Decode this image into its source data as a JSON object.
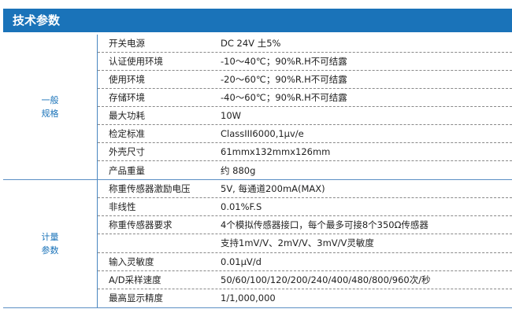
{
  "title": "技术参数",
  "sections": [
    {
      "category": [
        "一般",
        "规格"
      ],
      "rows": [
        {
          "label": "开关电源",
          "value": "DC 24V 土5%"
        },
        {
          "label": "认证使用环境",
          "value": "-10～40℃；90%R.H不可结露"
        },
        {
          "label": "使用环境",
          "value": "-20～60℃；90%R.H不可结露"
        },
        {
          "label": "存储环境",
          "value": "-40～60℃；90%R.H不可结露"
        },
        {
          "label": "最大功耗",
          "value": "10W"
        },
        {
          "label": "检定标准",
          "value": "ClassIII6000,1μv/e"
        },
        {
          "label": "外壳尺寸",
          "value": "61mmx132mmx126mm"
        },
        {
          "label": "产品重量",
          "value": "约 880g"
        }
      ]
    },
    {
      "category": [
        "计量",
        "参数"
      ],
      "rows": [
        {
          "label": "称重传感器激励电压",
          "value": "5V, 每通道200mA(MAX)"
        },
        {
          "label": "非线性",
          "value": "0.01%F.S"
        },
        {
          "label": "称重传感器要求",
          "value": "4个模拟传感器接口，每个最多可接8个350Ω传感器"
        },
        {
          "label": "",
          "value": "支持1mV/V、2mV/V、3mV/V灵敏度"
        },
        {
          "label": "输入灵敏度",
          "value": "0.01μV/d"
        },
        {
          "label": "A/D采样速度",
          "value": "50/60/100/120/200/240/400/480/800/960次/秒"
        },
        {
          "label": "最高显示精度",
          "value": "1/1,000,000"
        }
      ]
    }
  ]
}
